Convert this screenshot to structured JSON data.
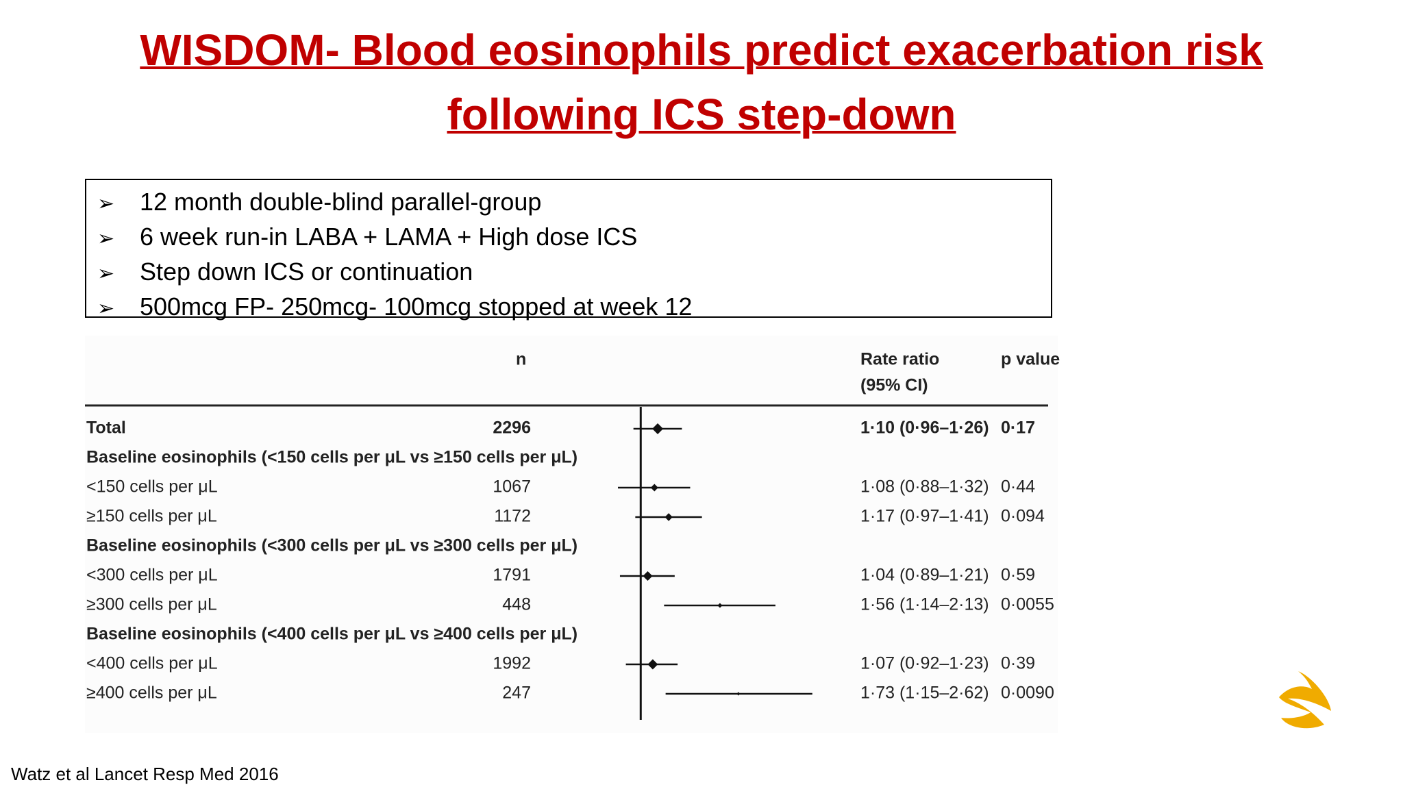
{
  "title": "WISDOM- Blood eosinophils predict exacerbation risk following ICS step-down",
  "bullets": [
    "12 month double-blind parallel-group",
    "6 week run-in LABA + LAMA + High dose ICS",
    "Step down ICS or continuation",
    "500mcg FP- 250mcg- 100mcg stopped at week 12"
  ],
  "chart_data": {
    "type": "forest",
    "n_header": "n",
    "ratio_header": [
      "Rate ratio",
      "(95% CI)"
    ],
    "p_header": "p value",
    "xlim": [
      0.5,
      3
    ],
    "log_scale": true,
    "reference": 1,
    "color": "#111111",
    "rows": [
      {
        "label": "Total",
        "bold": true,
        "n": 2296,
        "value": 1.1,
        "ci": [
          0.96,
          1.26
        ],
        "value_label": "1·10 (0·96–1·26)",
        "p": 0.17,
        "p_label": "0·17"
      },
      {
        "label": "Baseline eosinophils (<150 cells per μL vs ≥150 cells per μL)",
        "bold": true
      },
      {
        "label": "<150 cells per μL",
        "n": 1067,
        "value": 1.08,
        "ci": [
          0.88,
          1.32
        ],
        "value_label": "1·08 (0·88–1·32)",
        "p": 0.44,
        "p_label": "0·44"
      },
      {
        "label": "≥150 cells per μL",
        "n": 1172,
        "value": 1.17,
        "ci": [
          0.97,
          1.41
        ],
        "value_label": "1·17 (0·97–1·41)",
        "p": 0.094,
        "p_label": "0·094"
      },
      {
        "label": "Baseline eosinophils (<300 cells per μL vs ≥300 cells per μL)",
        "bold": true
      },
      {
        "label": "<300 cells per μL",
        "n": 1791,
        "value": 1.04,
        "ci": [
          0.89,
          1.21
        ],
        "value_label": "1·04 (0·89–1·21)",
        "p": 0.59,
        "p_label": "0·59"
      },
      {
        "label": "≥300 cells per μL",
        "n": 448,
        "value": 1.56,
        "ci": [
          1.14,
          2.13
        ],
        "value_label": "1·56 (1·14–2·13)",
        "p": 0.0055,
        "p_label": "0·0055"
      },
      {
        "label": "Baseline eosinophils (<400 cells per μL vs ≥400 cells per μL)",
        "bold": true
      },
      {
        "label": "<400 cells per μL",
        "n": 1992,
        "value": 1.07,
        "ci": [
          0.92,
          1.23
        ],
        "value_label": "1·07 (0·92–1·23)",
        "p": 0.39,
        "p_label": "0·39"
      },
      {
        "label": "≥400 cells per μL",
        "n": 247,
        "value": 1.73,
        "ci": [
          1.15,
          2.62
        ],
        "value_label": "1·73 (1·15–2·62)",
        "p": 0.009,
        "p_label": "0·0090"
      }
    ]
  },
  "footer": "Watz et al Lancet Resp Med 2016"
}
